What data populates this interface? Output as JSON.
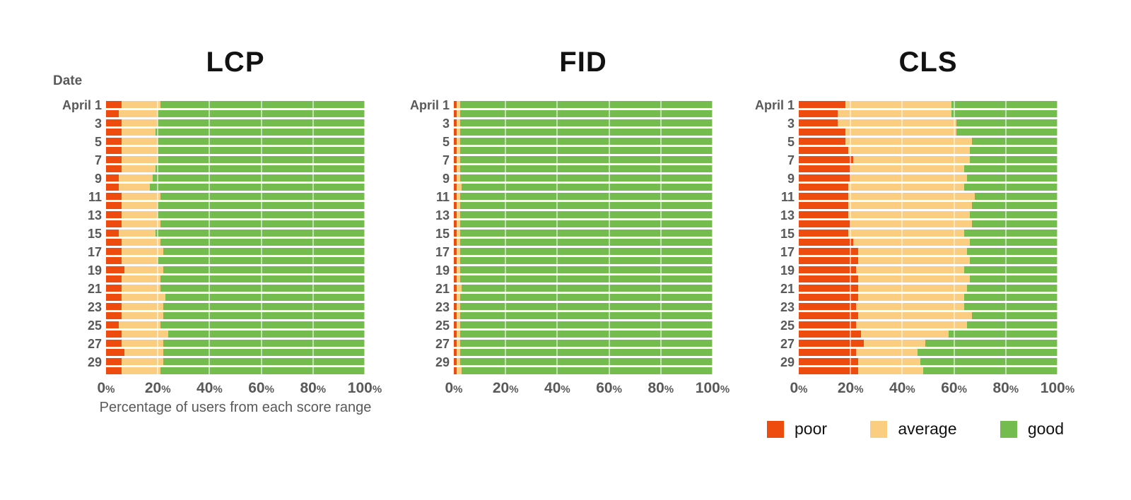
{
  "colors": {
    "poor": "#EE4B0E",
    "average": "#FACD80",
    "good": "#74BC4E"
  },
  "y_axis": {
    "header": "Date"
  },
  "x_axis": {
    "tick_values": [
      "0",
      "20",
      "40",
      "60",
      "80",
      "100"
    ],
    "tick_suffix": "%",
    "title": "Percentage of users from each score range",
    "range": [
      0,
      100
    ]
  },
  "legend": {
    "position": "bottom-right",
    "items": [
      {
        "key": "poor",
        "label": "poor"
      },
      {
        "key": "average",
        "label": "average"
      },
      {
        "key": "good",
        "label": "good"
      }
    ]
  },
  "chart_data": [
    {
      "type": "bar",
      "orientation": "horizontal",
      "stacked": true,
      "grid": true,
      "title": "LCP",
      "xlim": [
        0,
        100
      ],
      "categories": [
        "April 1",
        "",
        "3",
        "",
        "5",
        "",
        "7",
        "",
        "9",
        "",
        "11",
        "",
        "13",
        "",
        "15",
        "",
        "17",
        "",
        "19",
        "",
        "21",
        "",
        "23",
        "",
        "25",
        "",
        "27",
        "",
        "29",
        ""
      ],
      "series": [
        {
          "name": "poor",
          "values": [
            6,
            5,
            6,
            6,
            6,
            6,
            6,
            6,
            5,
            5,
            6,
            6,
            6,
            6,
            5,
            6,
            6,
            6,
            7,
            6,
            6,
            6,
            6,
            6,
            5,
            6,
            6,
            7,
            6,
            6
          ]
        },
        {
          "name": "average",
          "values": [
            15,
            15,
            14,
            13,
            14,
            14,
            14,
            13,
            13,
            12,
            15,
            14,
            14,
            15,
            14,
            15,
            16,
            14,
            15,
            15,
            15,
            17,
            16,
            16,
            16,
            18,
            16,
            15,
            16,
            15
          ]
        },
        {
          "name": "good",
          "values": [
            79,
            80,
            80,
            81,
            80,
            80,
            80,
            81,
            82,
            83,
            79,
            80,
            80,
            79,
            81,
            79,
            78,
            80,
            78,
            79,
            79,
            77,
            78,
            78,
            79,
            76,
            78,
            78,
            78,
            79
          ]
        }
      ]
    },
    {
      "type": "bar",
      "orientation": "horizontal",
      "stacked": true,
      "grid": true,
      "title": "FID",
      "xlim": [
        0,
        100
      ],
      "categories": [
        "April 1",
        "",
        "3",
        "",
        "5",
        "",
        "7",
        "",
        "9",
        "",
        "11",
        "",
        "13",
        "",
        "15",
        "",
        "17",
        "",
        "19",
        "",
        "21",
        "",
        "23",
        "",
        "25",
        "",
        "27",
        "",
        "29",
        ""
      ],
      "series": [
        {
          "name": "poor",
          "values": [
            1,
            1,
            1,
            1,
            1,
            1,
            1,
            1,
            1,
            1,
            1,
            1,
            1,
            1,
            1,
            1,
            1,
            1,
            1,
            1,
            1,
            1,
            1,
            1,
            1,
            1,
            1,
            1,
            1,
            1
          ]
        },
        {
          "name": "average",
          "values": [
            1.5,
            1.5,
            1.5,
            1.5,
            1.5,
            1.5,
            1.5,
            1.5,
            1.5,
            2,
            1.5,
            1.5,
            1.5,
            1.5,
            1.5,
            1.5,
            1.5,
            1.5,
            1.5,
            1.5,
            2,
            1.5,
            1.5,
            1.5,
            1.5,
            1.5,
            1.5,
            1.5,
            1.5,
            2
          ]
        },
        {
          "name": "good",
          "values": [
            97.5,
            97.5,
            97.5,
            97.5,
            97.5,
            97.5,
            97.5,
            97.5,
            97.5,
            97,
            97.5,
            97.5,
            97.5,
            97.5,
            97.5,
            97.5,
            97.5,
            97.5,
            97.5,
            97.5,
            97,
            97.5,
            97.5,
            97.5,
            97.5,
            97.5,
            97.5,
            97.5,
            97.5,
            97
          ]
        }
      ]
    },
    {
      "type": "bar",
      "orientation": "horizontal",
      "stacked": true,
      "grid": true,
      "title": "CLS",
      "xlim": [
        0,
        100
      ],
      "categories": [
        "April 1",
        "",
        "3",
        "",
        "5",
        "",
        "7",
        "",
        "9",
        "",
        "11",
        "",
        "13",
        "",
        "15",
        "",
        "17",
        "",
        "19",
        "",
        "21",
        "",
        "23",
        "",
        "25",
        "",
        "27",
        "",
        "29",
        ""
      ],
      "series": [
        {
          "name": "poor",
          "values": [
            18,
            15,
            15,
            18,
            18,
            19,
            21,
            20,
            20,
            19,
            19,
            19,
            19,
            20,
            19,
            21,
            23,
            23,
            22,
            23,
            23,
            23,
            22,
            23,
            22,
            24,
            25,
            22,
            23,
            23
          ]
        },
        {
          "name": "average",
          "values": [
            41,
            44,
            46,
            43,
            49,
            47,
            45,
            44,
            45,
            45,
            49,
            48,
            47,
            47,
            45,
            45,
            42,
            43,
            42,
            43,
            42,
            41,
            42,
            44,
            43,
            34,
            24,
            24,
            24,
            25
          ]
        },
        {
          "name": "good",
          "values": [
            41,
            41,
            39,
            39,
            33,
            34,
            34,
            36,
            35,
            36,
            32,
            33,
            34,
            33,
            36,
            34,
            35,
            34,
            36,
            34,
            35,
            36,
            36,
            33,
            35,
            42,
            51,
            54,
            53,
            52
          ]
        }
      ]
    }
  ]
}
